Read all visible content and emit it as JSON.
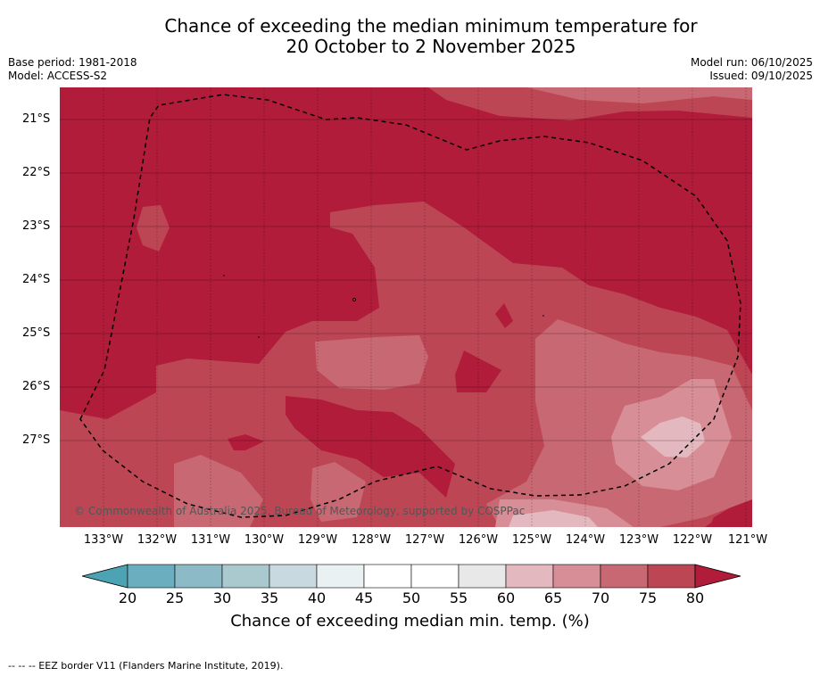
{
  "title_line1": "Chance of exceeding the median minimum temperature for",
  "title_line2": "20 October to 2 November 2025",
  "base_period": "Base period: 1981-2018",
  "model": "Model: ACCESS-S2",
  "model_run": "Model run: 06/10/2025",
  "issued": "Issued: 09/10/2025",
  "lat_labels": [
    "21°S",
    "22°S",
    "23°S",
    "24°S",
    "25°S",
    "26°S",
    "27°S"
  ],
  "lon_labels": [
    "133°W",
    "132°W",
    "131°W",
    "130°W",
    "129°W",
    "128°W",
    "127°W",
    "126°W",
    "125°W",
    "124°W",
    "123°W",
    "122°W",
    "121°W"
  ],
  "copyright": "© Commonwealth of Australia 2025, Bureau of Meteorology, supported by COSPPac",
  "colorbar": {
    "ticks": [
      "20",
      "25",
      "30",
      "35",
      "40",
      "45",
      "50",
      "55",
      "60",
      "65",
      "70",
      "75",
      "80"
    ],
    "label": "Chance of exceeding median min. temp. (%)",
    "colors": [
      "#6aaebf",
      "#8cbbc7",
      "#a9c9cf",
      "#c8dadf",
      "#eaf1f3",
      "#ffffff",
      "#ffffff",
      "#e8e8e8",
      "#e3b8be",
      "#d88e97",
      "#c86872",
      "#bd4655"
    ],
    "under_color": "#4ba3b3",
    "over_color": "#b01c3a"
  },
  "legend_footnote": "-- -- -- EEZ border V11 (Flanders Marine Institute, 2019).",
  "regions": {
    "over_80": "#b01c3a",
    "p75_80": "#bd4655",
    "p70_75": "#c86872",
    "p65_70": "#d88e97",
    "p60_65": "#e3b8be"
  }
}
